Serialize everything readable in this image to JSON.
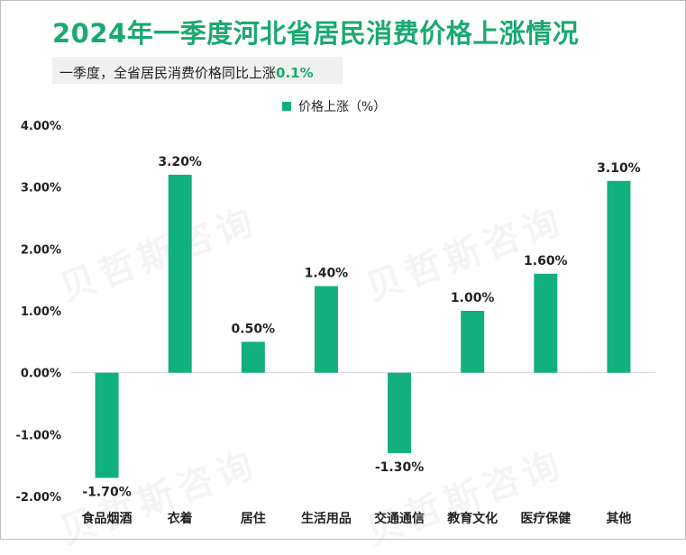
{
  "title": "2024年一季度河北省居民消费价格上涨情况",
  "subtitle": {
    "text": "一季度，全省居民消费价格同比上涨",
    "highlight": "0.1%"
  },
  "colors": {
    "accent": "#1aa970",
    "bar": "#12b07f"
  },
  "watermark": "贝哲斯咨询",
  "chart_data": {
    "type": "bar",
    "title": "",
    "xlabel": "",
    "ylabel": "",
    "legend": "top-center",
    "grid": false,
    "ylim": [
      -2,
      4
    ],
    "yticks": [
      4,
      3,
      2,
      1,
      0,
      -1,
      -2
    ],
    "ytick_labels": [
      "4.00%",
      "3.00%",
      "2.00%",
      "1.00%",
      "0.00%",
      "-1.00%",
      "-2.00%"
    ],
    "categories": [
      "食品烟酒",
      "衣着",
      "居住",
      "生活用品",
      "交通通信",
      "教育文化",
      "医疗保健",
      "其他"
    ],
    "series": [
      {
        "name": "价格上涨（%）",
        "values": [
          -1.7,
          3.2,
          0.5,
          1.4,
          -1.3,
          1.0,
          1.6,
          3.1
        ],
        "labels": [
          "-1.70%",
          "3.20%",
          "0.50%",
          "1.40%",
          "-1.30%",
          "1.00%",
          "1.60%",
          "3.10%"
        ]
      }
    ]
  }
}
